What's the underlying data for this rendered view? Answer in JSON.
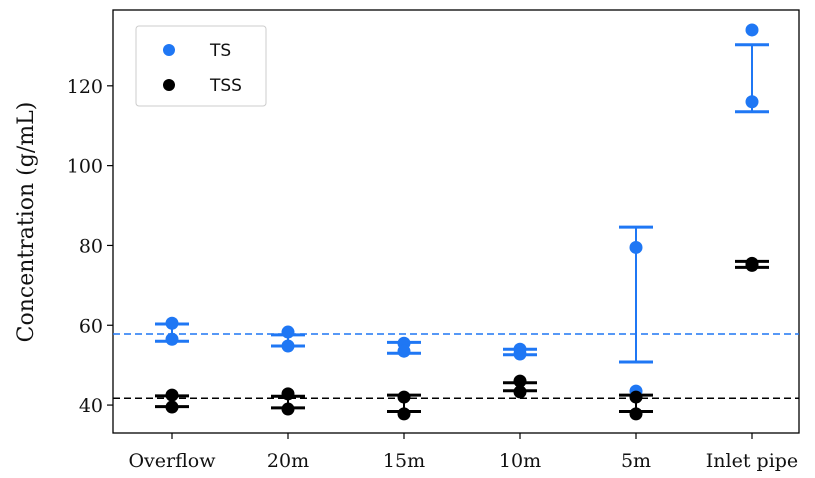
{
  "chart_data": {
    "type": "scatter",
    "title": "",
    "xlabel": "",
    "ylabel": "Concentration (g/mL)",
    "categories": [
      "Overflow",
      "20m",
      "15m",
      "10m",
      "5m",
      "Inlet pipe"
    ],
    "ylim": [
      33,
      139
    ],
    "yticks": [
      40,
      60,
      80,
      100,
      120
    ],
    "grid": false,
    "legend_position": "top-left",
    "series": [
      {
        "name": "TS",
        "color": "#1f77f4",
        "points": [
          [
            60.5,
            56.5
          ],
          [
            58.3,
            54.8
          ],
          [
            55.5,
            53.5
          ],
          [
            54.0,
            52.8
          ],
          [
            79.5,
            43.5
          ],
          [
            134.0,
            116.0
          ]
        ],
        "error_bars": [
          [
            56.0,
            60.3
          ],
          [
            54.8,
            57.6
          ],
          [
            53.0,
            55.7
          ],
          [
            52.6,
            54.0
          ],
          [
            50.8,
            84.6
          ],
          [
            113.5,
            130.3
          ]
        ]
      },
      {
        "name": "TSS",
        "color": "#000000",
        "points": [
          [
            42.5,
            39.5
          ],
          [
            42.8,
            39.0
          ],
          [
            42.0,
            37.8
          ],
          [
            46.0,
            43.3
          ],
          [
            42.0,
            37.8
          ],
          [
            75.5,
            75.0
          ]
        ],
        "error_bars": [
          [
            39.6,
            42.3
          ],
          [
            39.3,
            42.2
          ],
          [
            38.4,
            42.5
          ],
          [
            43.6,
            45.6
          ],
          [
            38.4,
            42.5
          ],
          [
            74.5,
            76.0
          ]
        ]
      }
    ],
    "reference_lines": [
      {
        "series": "TS",
        "value": 57.8,
        "color": "#1f77f4",
        "style": "dashed"
      },
      {
        "series": "TSS",
        "value": 41.7,
        "color": "#000000",
        "style": "dashed"
      }
    ]
  }
}
